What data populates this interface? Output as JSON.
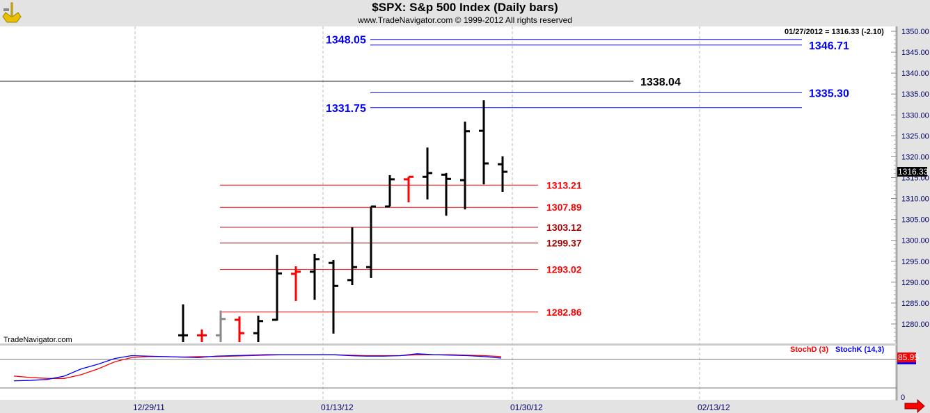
{
  "header": {
    "title": "$SPX:  S&p 500 Index  (Daily bars)",
    "subtitle": "www.TradeNavigator.com © 1999-2012 All rights reserved"
  },
  "watermark": "TradeNavigator.com",
  "chart_data": {
    "type": "ohlc",
    "title": "$SPX:  S&p 500 Index  (Daily bars)",
    "readout": "01/27/2012 = 1316.33 (-2.10)",
    "last_price_label": "1316.33",
    "ylim": [
      1277,
      1352
    ],
    "y_ticks": [
      "1350.00",
      "1345.00",
      "1340.00",
      "1335.00",
      "1330.00",
      "1325.00",
      "1320.00",
      "1315.00",
      "1310.00",
      "1305.00",
      "1300.00",
      "1295.00",
      "1290.00",
      "1285.00",
      "1280.00"
    ],
    "y_tick_values": [
      1350,
      1345,
      1340,
      1335,
      1330,
      1325,
      1320,
      1315,
      1310,
      1305,
      1300,
      1295,
      1290,
      1285,
      1280
    ],
    "x_labels": [
      "12/29/11",
      "01/13/12",
      "01/30/12",
      "02/13/12"
    ],
    "bars": [
      {
        "o": 1277.3,
        "h": 1284.7,
        "l": 1275,
        "c": 1277.3,
        "color": "#000000"
      },
      {
        "o": 1277.3,
        "h": 1278.7,
        "l": 1275,
        "c": 1277.3,
        "color": "#ff0000"
      },
      {
        "o": 1277.3,
        "h": 1283.2,
        "l": 1275,
        "c": 1281.2,
        "color": "#888888"
      },
      {
        "o": 1281.0,
        "h": 1281.8,
        "l": 1275,
        "c": 1277.8,
        "color": "#ff0000"
      },
      {
        "o": 1277.8,
        "h": 1282.0,
        "l": 1275,
        "c": 1280.7,
        "color": "#000000"
      },
      {
        "o": 1281.0,
        "h": 1296.5,
        "l": 1280.8,
        "c": 1292.1,
        "color": "#000000"
      },
      {
        "o": 1292.0,
        "h": 1293.8,
        "l": 1285.5,
        "c": 1292.5,
        "color": "#ff0000"
      },
      {
        "o": 1292.5,
        "h": 1296.8,
        "l": 1285.8,
        "c": 1295.5,
        "color": "#000000"
      },
      {
        "o": 1294.6,
        "h": 1295.3,
        "l": 1277.7,
        "c": 1289.1,
        "color": "#000000"
      },
      {
        "o": 1290.5,
        "h": 1303.1,
        "l": 1289.3,
        "c": 1293.6,
        "color": "#000000"
      },
      {
        "o": 1293.6,
        "h": 1308.1,
        "l": 1291.0,
        "c": 1308.1,
        "color": "#000000"
      },
      {
        "o": 1308.1,
        "h": 1315.6,
        "l": 1308.1,
        "c": 1314.6,
        "color": "#000000"
      },
      {
        "o": 1314.6,
        "h": 1315.2,
        "l": 1309.1,
        "c": 1315.2,
        "color": "#ff0000"
      },
      {
        "o": 1315.2,
        "h": 1322.2,
        "l": 1309.8,
        "c": 1316.1,
        "color": "#000000"
      },
      {
        "o": 1315.7,
        "h": 1316.1,
        "l": 1305.9,
        "c": 1314.7,
        "color": "#000000"
      },
      {
        "o": 1314.4,
        "h": 1328.4,
        "l": 1307.4,
        "c": 1326.1,
        "color": "#000000"
      },
      {
        "o": 1326.2,
        "h": 1333.5,
        "l": 1313.4,
        "c": 1318.4,
        "color": "#000000"
      },
      {
        "o": 1318.2,
        "h": 1320.1,
        "l": 1311.6,
        "c": 1316.4,
        "color": "#000000"
      }
    ],
    "levels": [
      {
        "label": "1348.05",
        "value": 1348.05,
        "color": "#0000ff",
        "group": "blue",
        "label_side": "left"
      },
      {
        "label": "1346.71",
        "value": 1346.71,
        "color": "#0000ff",
        "group": "blue",
        "label_side": "right"
      },
      {
        "label": "1338.04",
        "value": 1338.04,
        "color": "#000000",
        "group": "black",
        "label_side": "right"
      },
      {
        "label": "1335.30",
        "value": 1335.3,
        "color": "#0000ff",
        "group": "blue",
        "label_side": "right"
      },
      {
        "label": "1331.75",
        "value": 1331.75,
        "color": "#0000ff",
        "group": "blue",
        "label_side": "left"
      },
      {
        "label": "1313.21",
        "value": 1313.21,
        "color": "#ff0000",
        "group": "red",
        "label_side": "right"
      },
      {
        "label": "1307.89",
        "value": 1307.89,
        "color": "#ff0000",
        "group": "red",
        "label_side": "right"
      },
      {
        "label": "1303.12",
        "value": 1303.12,
        "color": "#aa0000",
        "group": "red",
        "label_side": "right"
      },
      {
        "label": "1299.37",
        "value": 1299.37,
        "color": "#aa0000",
        "group": "red",
        "label_side": "right"
      },
      {
        "label": "1293.02",
        "value": 1293.02,
        "color": "#ff0000",
        "group": "red",
        "label_side": "right"
      },
      {
        "label": "1282.86",
        "value": 1282.86,
        "color": "#ff0000",
        "group": "red",
        "label_side": "right"
      }
    ],
    "stochastic": {
      "legend": [
        {
          "name": "StochD (3)",
          "color": "#ff0000"
        },
        {
          "name": "StochK (14,3)",
          "color": "#0000ff"
        }
      ],
      "ylim": [
        0,
        100
      ],
      "ref_lines": [
        80,
        20
      ],
      "last_label": "85.95",
      "zero_label": "0",
      "k": [
        35,
        36,
        38,
        45,
        60,
        70,
        82,
        88,
        87,
        86,
        85,
        84,
        87,
        88,
        89,
        90,
        90,
        90,
        90,
        90,
        88,
        87,
        87,
        88,
        92,
        90,
        89,
        88,
        86,
        83
      ],
      "d": [
        45,
        42,
        40,
        40,
        48,
        60,
        75,
        84,
        86,
        86,
        85,
        86,
        86,
        87,
        88,
        89,
        90,
        90,
        90,
        90,
        89,
        88,
        88,
        88,
        90,
        90,
        90,
        89,
        88,
        86
      ]
    }
  }
}
